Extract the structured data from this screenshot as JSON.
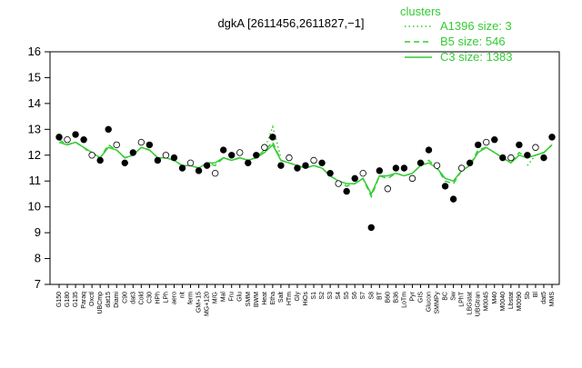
{
  "chart_data": {
    "type": "line",
    "title": "dgkA [2611456,2611827,−1]",
    "legend_title": "clusters",
    "legend_position": "top-right",
    "ylim": [
      7,
      16
    ],
    "yticks": [
      7,
      8,
      9,
      10,
      11,
      12,
      13,
      14,
      15,
      16
    ],
    "categories": [
      "G150",
      "G180",
      "G135",
      "Paraq",
      "Oxctl",
      "UBCmp",
      "dat15",
      "Diami",
      "C90",
      "dat3",
      "Cold",
      "C30",
      "HPh",
      "LPh",
      "aero",
      "nit",
      "ferm",
      "GM+15",
      "MG+120",
      "M/G",
      "Mal",
      "Fru",
      "Glu",
      "SMM",
      "BWM",
      "Heat",
      "Etha",
      "Salt",
      "HTm",
      "Gly",
      "HiOs",
      "S1",
      "S2",
      "S3",
      "S4",
      "S5",
      "S6",
      "S7",
      "S8",
      "BT",
      "B60",
      "B36",
      "LoTm",
      "Pyr",
      "GIS",
      "Glucon",
      "SMMPy",
      "BC",
      "Sw",
      "LPhT",
      "LBGstat",
      "UBGtran",
      "M0045",
      "M40",
      "M0040",
      "Lbstat",
      "M0090",
      "Sb",
      "Bl",
      "dat5",
      "MMS"
    ],
    "series": [
      {
        "name": "A1396 size: 3",
        "color": "#33cc33",
        "style": "dotted",
        "values": [
          null,
          null,
          null,
          null,
          null,
          null,
          null,
          null,
          null,
          null,
          null,
          null,
          null,
          null,
          null,
          null,
          null,
          null,
          null,
          null,
          null,
          null,
          null,
          null,
          null,
          12.2,
          13.1,
          11.9,
          null,
          null,
          null,
          null,
          null,
          null,
          null,
          null,
          null,
          null,
          null,
          null,
          null,
          null,
          null,
          null,
          null,
          null,
          null,
          null,
          null,
          null,
          null,
          null,
          null,
          null,
          null,
          null,
          null,
          11.6,
          12.0,
          12.1,
          null
        ]
      },
      {
        "name": "B5 size: 546",
        "color": "#33cc33",
        "style": "dashed",
        "values": [
          12.6,
          12.4,
          12.5,
          12.3,
          12.0,
          11.9,
          12.4,
          12.2,
          11.9,
          12.0,
          12.3,
          12.2,
          11.9,
          11.9,
          11.8,
          11.6,
          11.6,
          11.5,
          11.7,
          11.6,
          11.9,
          11.8,
          11.9,
          11.8,
          11.9,
          12.2,
          12.5,
          11.8,
          11.7,
          11.6,
          11.5,
          11.6,
          11.5,
          11.2,
          11.0,
          10.8,
          10.9,
          11.1,
          10.4,
          11.2,
          11.1,
          11.3,
          11.2,
          11.3,
          11.6,
          11.8,
          11.5,
          11.0,
          10.9,
          11.4,
          11.6,
          12.2,
          12.3,
          12.1,
          11.9,
          11.7,
          12.1,
          11.9,
          12.0,
          12.1,
          12.4
        ]
      },
      {
        "name": "C3 size: 1383",
        "color": "#33cc33",
        "style": "solid",
        "values": [
          12.5,
          12.4,
          12.5,
          12.3,
          12.1,
          11.9,
          12.3,
          12.2,
          11.9,
          12.0,
          12.3,
          12.2,
          11.9,
          11.9,
          11.8,
          11.6,
          11.6,
          11.5,
          11.7,
          11.7,
          11.9,
          11.8,
          11.9,
          11.8,
          11.9,
          12.1,
          12.4,
          11.8,
          11.7,
          11.6,
          11.5,
          11.6,
          11.5,
          11.2,
          11.0,
          10.9,
          10.9,
          11.1,
          10.5,
          11.2,
          11.2,
          11.3,
          11.2,
          11.3,
          11.6,
          11.7,
          11.5,
          11.1,
          11.0,
          11.4,
          11.6,
          12.1,
          12.3,
          12.1,
          11.9,
          11.7,
          12.0,
          11.9,
          12.0,
          12.1,
          12.4
        ]
      }
    ],
    "points": [
      12.7,
      12.6,
      12.8,
      12.6,
      12.0,
      11.8,
      13.0,
      12.4,
      11.7,
      12.1,
      12.5,
      12.4,
      11.8,
      12.0,
      11.9,
      11.5,
      11.7,
      11.4,
      11.6,
      11.3,
      12.2,
      12.0,
      12.1,
      11.7,
      12.0,
      12.3,
      12.7,
      11.6,
      11.9,
      11.5,
      11.6,
      11.8,
      11.7,
      11.3,
      10.9,
      10.6,
      11.1,
      11.3,
      9.2,
      11.4,
      10.7,
      11.5,
      11.5,
      11.1,
      11.7,
      12.2,
      11.6,
      10.8,
      10.3,
      11.5,
      11.7,
      12.4,
      12.5,
      12.6,
      11.9,
      11.9,
      12.4,
      12.0,
      12.3,
      11.9,
      12.7
    ]
  }
}
